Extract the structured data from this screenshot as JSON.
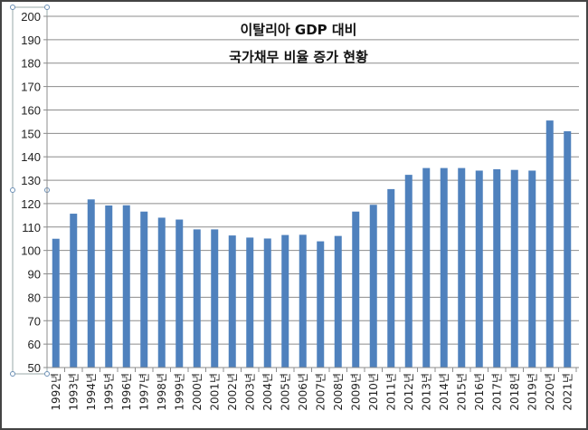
{
  "chart_data": {
    "type": "bar",
    "title": [
      "이탈리아 GDP 대비",
      "국가채무 비율 증가 현황"
    ],
    "xlabel": "",
    "ylabel": "",
    "ylim": [
      50,
      200
    ],
    "yticks": [
      50,
      60,
      70,
      80,
      90,
      100,
      110,
      120,
      130,
      140,
      150,
      160,
      170,
      180,
      190,
      200
    ],
    "grid": true,
    "legend": "none",
    "bar_color": "#4f81bd",
    "categories": [
      "1992년",
      "1993년",
      "1994년",
      "1995년",
      "1996년",
      "1997년",
      "1998년",
      "1999년",
      "2000년",
      "2001년",
      "2002년",
      "2003년",
      "2004년",
      "2005년",
      "2006년",
      "2007년",
      "2008년",
      "2009년",
      "2010년",
      "2011년",
      "2012년",
      "2013년",
      "2014년",
      "2015년",
      "2016년",
      "2017년",
      "2018년",
      "2019년",
      "2020년",
      "2021년"
    ],
    "values": [
      105.0,
      115.7,
      121.8,
      119.2,
      119.3,
      116.6,
      114.0,
      113.2,
      109.0,
      109.0,
      106.4,
      105.5,
      105.1,
      106.6,
      106.7,
      103.9,
      106.2,
      116.6,
      119.5,
      126.2,
      132.3,
      135.2,
      135.2,
      135.2,
      134.1,
      134.7,
      134.4,
      134.1,
      155.5,
      150.9
    ]
  }
}
